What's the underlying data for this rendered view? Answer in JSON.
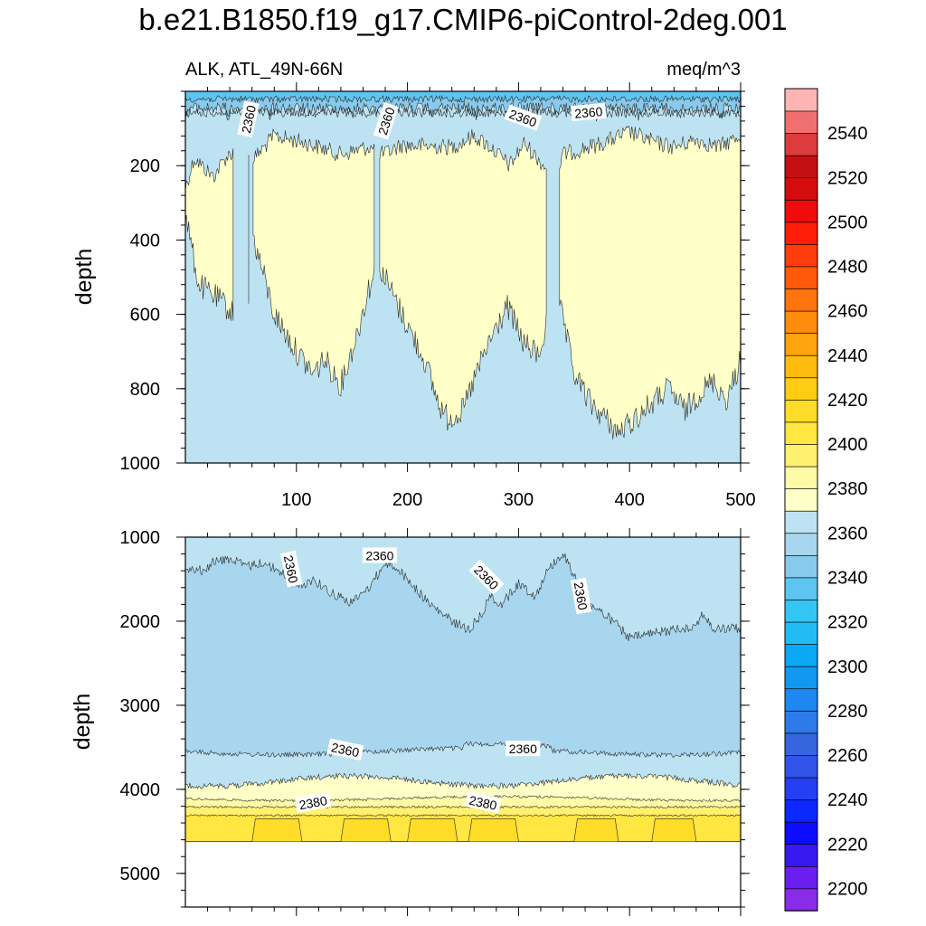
{
  "chart_data": {
    "type": "contour",
    "title": "b.e21.B1850.f19_g17.CMIP6-piControl-2deg.001",
    "left_subtitle": "ALK, ATL_49N-66N",
    "right_subtitle": "meq/m^3",
    "xaxis": {
      "range": [
        0,
        500
      ],
      "ticks": [
        100,
        200,
        300,
        400,
        500
      ],
      "tick_labels": [
        "100",
        "200",
        "300",
        "400",
        "500"
      ]
    },
    "panels": [
      {
        "name": "upper",
        "ylabel": "depth",
        "ylim": [
          0,
          1000
        ],
        "yticks": [
          200,
          400,
          600,
          800,
          1000
        ],
        "ytick_labels": [
          "200",
          "400",
          "600",
          "800",
          "1000"
        ],
        "contour_labels": [
          {
            "text": "2360",
            "x": 57,
            "y": 75,
            "rot": -78
          },
          {
            "text": "2360",
            "x": 181,
            "y": 80,
            "rot": -72
          },
          {
            "text": "2360",
            "x": 304,
            "y": 72,
            "rot": 20
          },
          {
            "text": "2360",
            "x": 363,
            "y": 57,
            "rot": -5
          }
        ]
      },
      {
        "name": "lower",
        "ylabel": "depth",
        "ylim": [
          1000,
          5400
        ],
        "yticks": [
          1000,
          2000,
          3000,
          4000,
          5000
        ],
        "ytick_labels": [
          "1000",
          "2000",
          "3000",
          "4000",
          "5000"
        ],
        "bottom_depth": 4620,
        "contour_labels": [
          {
            "text": "2360",
            "x": 95,
            "y": 1380,
            "rot": 78
          },
          {
            "text": "2360",
            "x": 175,
            "y": 1220,
            "rot": 0
          },
          {
            "text": "2360",
            "x": 271,
            "y": 1480,
            "rot": 45
          },
          {
            "text": "2360",
            "x": 356,
            "y": 1700,
            "rot": 80
          },
          {
            "text": "2360",
            "x": 144,
            "y": 3530,
            "rot": 12
          },
          {
            "text": "2360",
            "x": 304,
            "y": 3520,
            "rot": 0
          },
          {
            "text": "2380",
            "x": 115,
            "y": 4160,
            "rot": -10
          },
          {
            "text": "2380",
            "x": 268,
            "y": 4160,
            "rot": 12
          }
        ]
      }
    ],
    "colorbar": {
      "levels": [
        2200,
        2210,
        2220,
        2230,
        2240,
        2250,
        2260,
        2270,
        2280,
        2290,
        2300,
        2310,
        2320,
        2330,
        2340,
        2350,
        2360,
        2370,
        2380,
        2390,
        2400,
        2410,
        2420,
        2430,
        2440,
        2450,
        2460,
        2470,
        2480,
        2490,
        2500,
        2510,
        2520,
        2530,
        2540,
        2550
      ],
      "labels": [
        "2200",
        "2220",
        "2240",
        "2260",
        "2280",
        "2300",
        "2320",
        "2340",
        "2360",
        "2380",
        "2400",
        "2420",
        "2440",
        "2460",
        "2480",
        "2500",
        "2520",
        "2540"
      ],
      "colors": [
        "#8a2be8",
        "#6a1ef0",
        "#3a18f0",
        "#0c0cff",
        "#0a28ff",
        "#2440f0",
        "#3054e8",
        "#3566e0",
        "#2e7ae8",
        "#1e88f0",
        "#1298f0",
        "#0aa8f5",
        "#22bcf5",
        "#35c5f5",
        "#5ec4f0",
        "#88caec",
        "#a8d6ee",
        "#bde3f2",
        "#ffffc8",
        "#fffaa5",
        "#fff070",
        "#ffe640",
        "#ffdc28",
        "#ffcc14",
        "#ffbc0e",
        "#ffa40c",
        "#ff8c0c",
        "#ff740c",
        "#ff5a0c",
        "#ff3c0c",
        "#ff1e08",
        "#f00c0c",
        "#d40c0c",
        "#c41010",
        "#dc3c3c",
        "#f07070",
        "#ffb4b4"
      ]
    }
  }
}
